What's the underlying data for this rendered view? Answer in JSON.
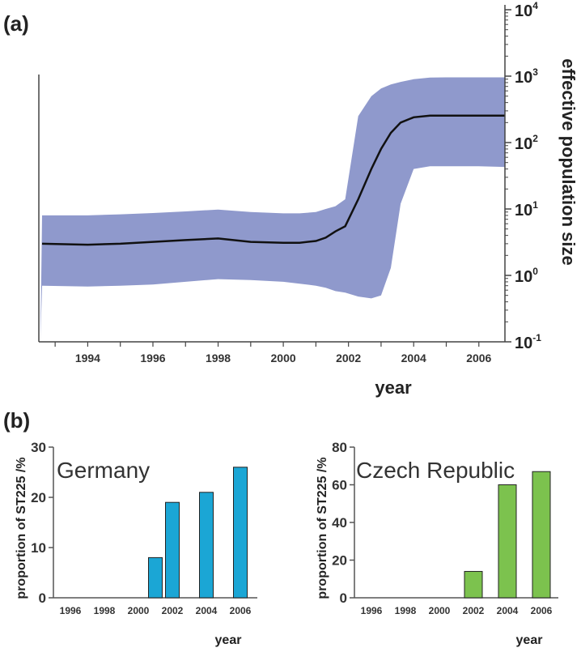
{
  "panel_a": {
    "label": "(a)",
    "chart_data": {
      "type": "area",
      "xlabel": "year",
      "ylabel": "effective population size",
      "y_scale": "log",
      "xlim": [
        1992.5,
        2006.8
      ],
      "ylim": [
        0.1,
        10000
      ],
      "x_ticks": [
        1994,
        1996,
        1998,
        2000,
        2002,
        2004,
        2006
      ],
      "y_ticks": [
        {
          "value": 0.1,
          "base": "10",
          "exp": "-1"
        },
        {
          "value": 1,
          "base": "10",
          "exp": "0"
        },
        {
          "value": 10,
          "base": "10",
          "exp": "1"
        },
        {
          "value": 100,
          "base": "10",
          "exp": "2"
        },
        {
          "value": 1000,
          "base": "10",
          "exp": "3"
        },
        {
          "value": 10000,
          "base": "10",
          "exp": "4"
        }
      ],
      "band_color": "#8f99cc",
      "line_color": "#111111",
      "x": [
        1992.6,
        1994,
        1995,
        1996,
        1997,
        1998,
        1999,
        2000,
        2000.5,
        2001,
        2001.3,
        2001.6,
        2001.9,
        2002.3,
        2002.7,
        2003.0,
        2003.3,
        2003.6,
        2004.0,
        2004.5,
        2005,
        2006,
        2006.8
      ],
      "median": [
        3.0,
        2.9,
        3.0,
        3.2,
        3.4,
        3.6,
        3.2,
        3.1,
        3.1,
        3.3,
        3.7,
        4.6,
        5.5,
        14,
        40,
        80,
        140,
        200,
        240,
        255,
        255,
        255,
        255
      ],
      "upper": [
        8.0,
        8.0,
        8.3,
        8.7,
        9.2,
        9.8,
        9.0,
        8.6,
        8.6,
        9.0,
        10,
        11,
        14,
        250,
        500,
        650,
        750,
        820,
        900,
        950,
        960,
        960,
        960
      ],
      "lower": [
        0.7,
        0.68,
        0.7,
        0.73,
        0.8,
        0.88,
        0.85,
        0.8,
        0.75,
        0.7,
        0.65,
        0.58,
        0.55,
        0.48,
        0.45,
        0.5,
        1.3,
        12,
        40,
        44,
        44,
        44,
        43
      ]
    }
  },
  "panel_b": {
    "label": "(b)",
    "charts": [
      {
        "type": "bar",
        "title": "Germany",
        "ylabel": "proportion of ST225 /%",
        "xlabel": "year",
        "color": "#1ba6d5",
        "x_ticks": [
          1996,
          1998,
          2000,
          2002,
          2004,
          2006
        ],
        "xlim": [
          1995,
          2007
        ],
        "ylim": [
          0,
          30
        ],
        "y_ticks": [
          0,
          10,
          20,
          30
        ],
        "x": [
          2001,
          2002,
          2004,
          2006
        ],
        "values": [
          8,
          19,
          21,
          26
        ]
      },
      {
        "type": "bar",
        "title": "Czech Republic",
        "ylabel": "proportion of ST225 /%",
        "xlabel": "year",
        "color": "#7cc24e",
        "x_ticks": [
          1996,
          1998,
          2000,
          2002,
          2004,
          2006
        ],
        "xlim": [
          1995,
          2007
        ],
        "ylim": [
          0,
          80
        ],
        "y_ticks": [
          0,
          20,
          40,
          60,
          80
        ],
        "x": [
          2002,
          2004,
          2006
        ],
        "values": [
          14,
          60,
          67
        ]
      }
    ]
  }
}
